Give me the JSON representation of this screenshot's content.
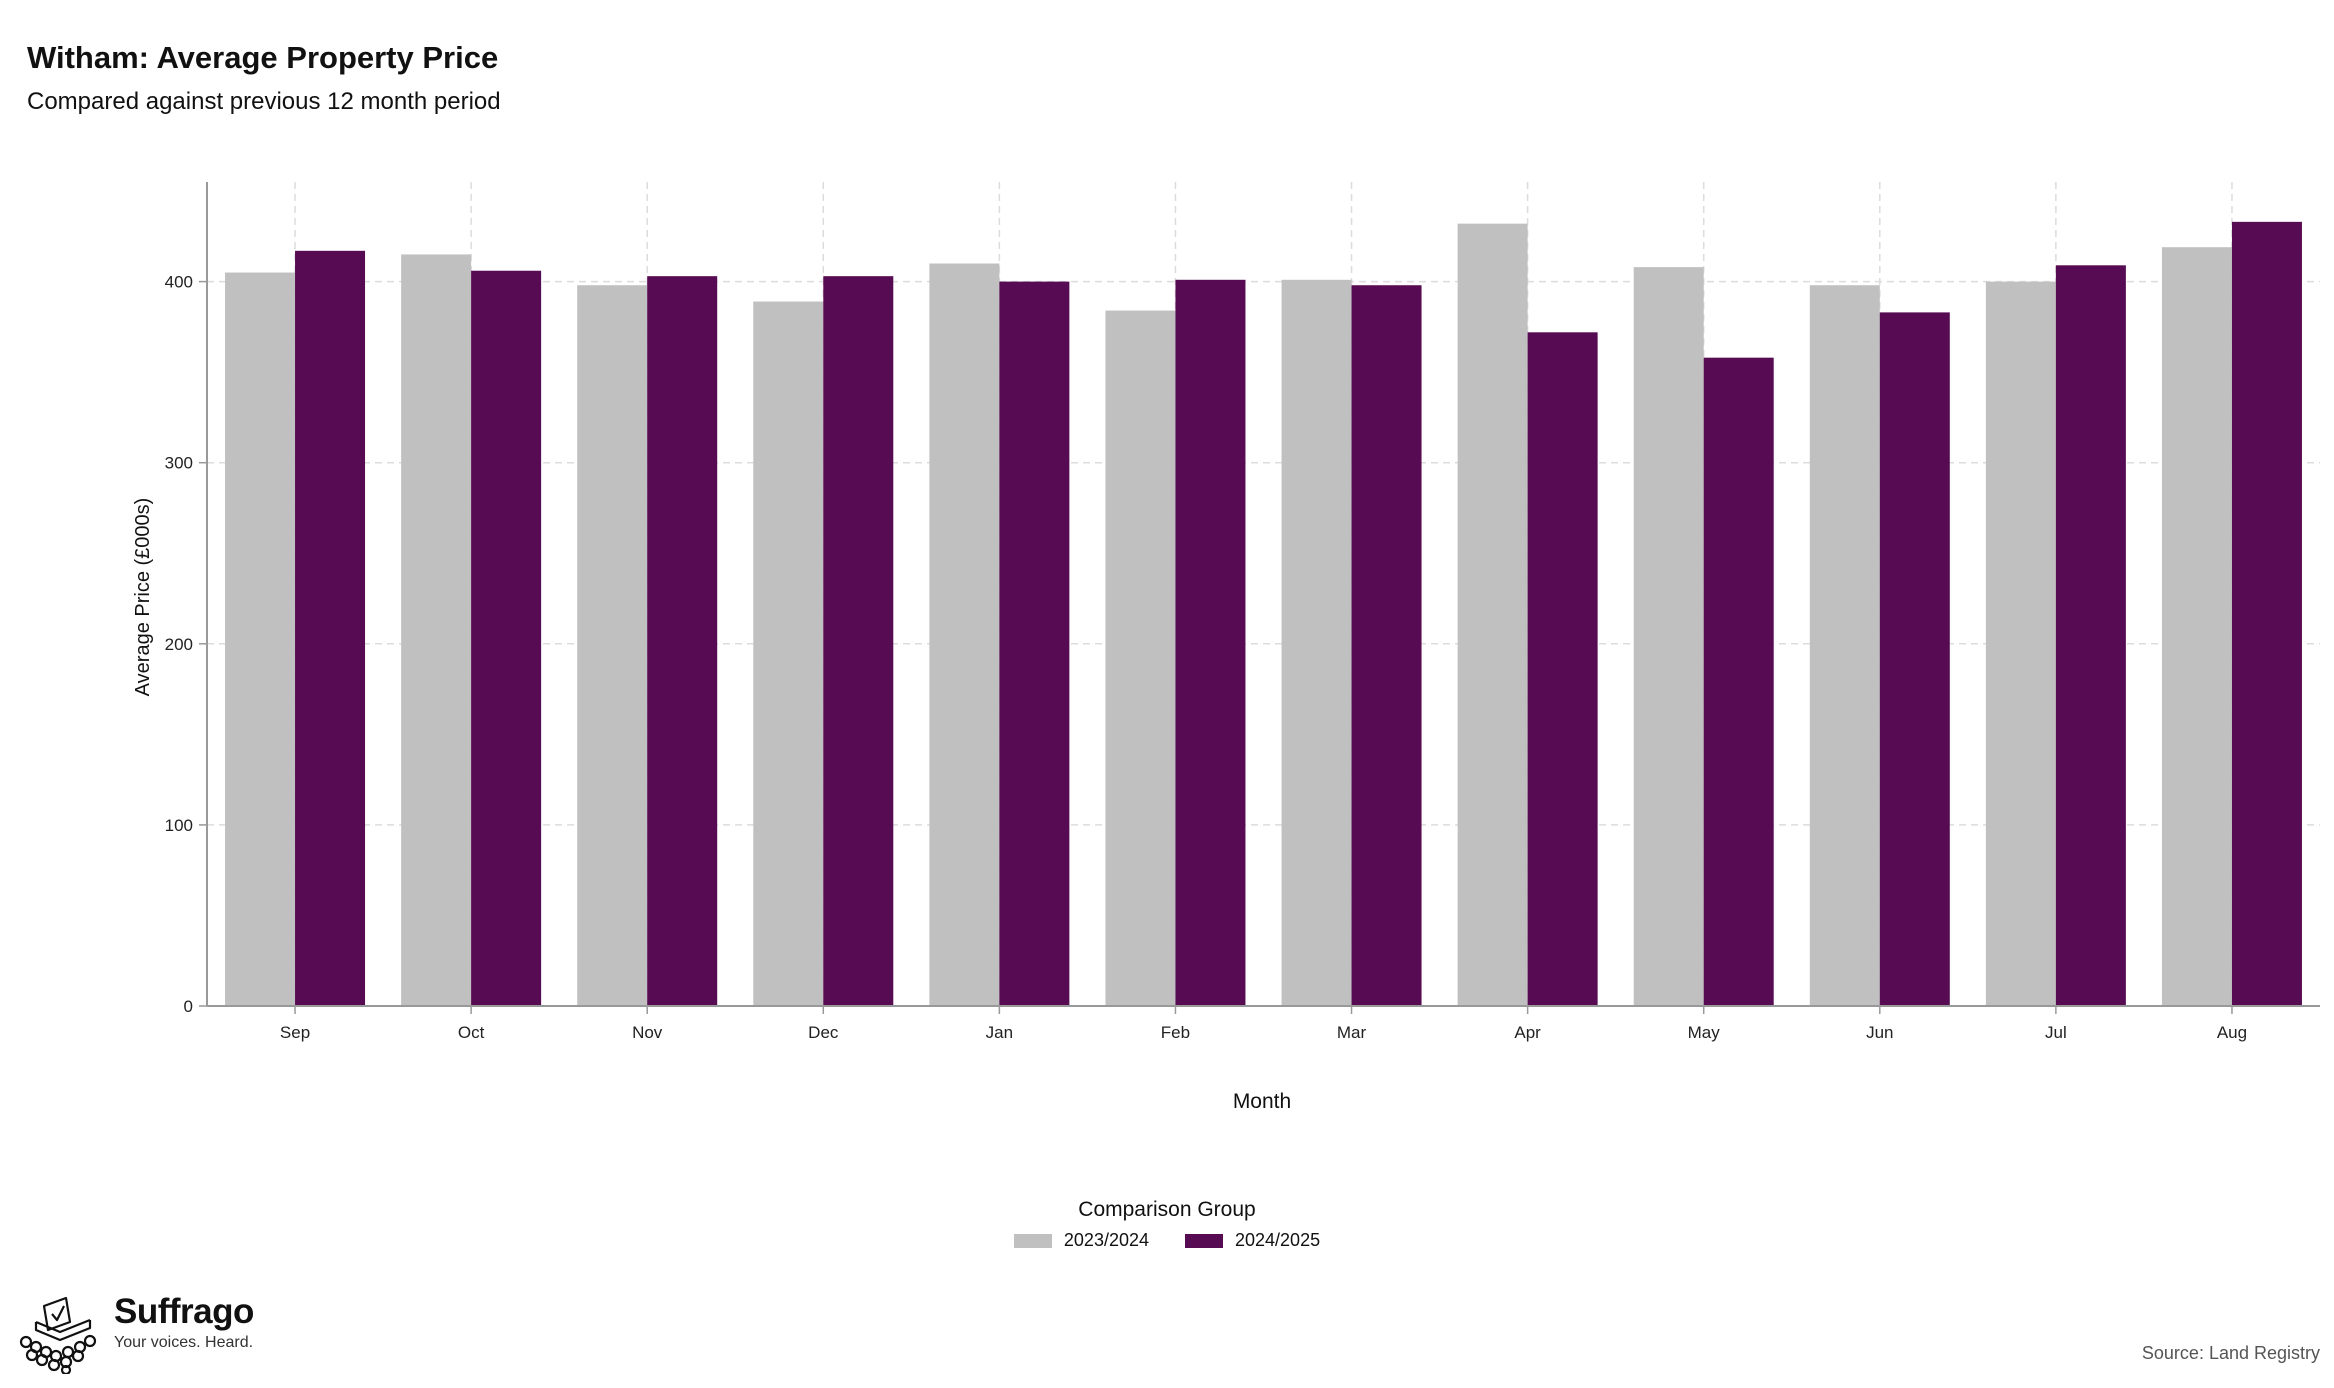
{
  "header": {
    "title": "Witham: Average Property Price",
    "subtitle": "Compared against previous 12 month period"
  },
  "legend": {
    "title": "Comparison Group",
    "placement": "bottom"
  },
  "brand": {
    "name": "Suffrago",
    "tagline": "Your voices. Heard."
  },
  "footer": {
    "source": "Source: Land Registry"
  },
  "chart_data": {
    "type": "bar",
    "xlabel": "Month",
    "ylabel": "Average Price (£000s)",
    "ylim": [
      0,
      455
    ],
    "yticks": [
      0,
      100,
      200,
      300,
      400
    ],
    "grid": true,
    "categories": [
      "Sep",
      "Oct",
      "Nov",
      "Dec",
      "Jan",
      "Feb",
      "Mar",
      "Apr",
      "May",
      "Jun",
      "Jul",
      "Aug"
    ],
    "series": [
      {
        "name": "2023/2024",
        "color": "#c0c0c0",
        "values": [
          405,
          415,
          398,
          389,
          410,
          384,
          401,
          432,
          408,
          398,
          400,
          419
        ]
      },
      {
        "name": "2024/2025",
        "color": "#570b52",
        "values": [
          417,
          406,
          403,
          403,
          400,
          401,
          398,
          372,
          358,
          383,
          409,
          433
        ]
      }
    ]
  }
}
